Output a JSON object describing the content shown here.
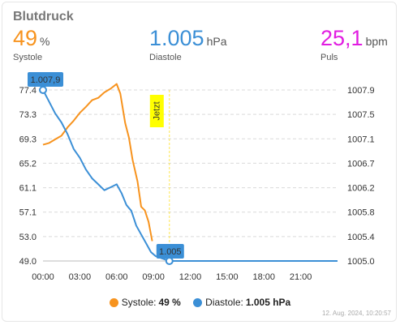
{
  "card": {
    "title": "Blutdruck",
    "timestamp": "12. Aug. 2024, 10:20:57"
  },
  "stats": {
    "systole": {
      "value": "49",
      "unit": "%",
      "label": "Systole"
    },
    "diastole": {
      "value": "1.005",
      "unit": "hPa",
      "label": "Diastole"
    },
    "puls": {
      "value": "25,1",
      "unit": "bpm",
      "label": "Puls"
    }
  },
  "legend": {
    "systole_label": "Systole:",
    "systole_value": "49 %",
    "diastole_label": "Diastole:",
    "diastole_value": "1.005 hPa"
  },
  "colors": {
    "systole": "#f7931e",
    "diastole": "#3b8fd6",
    "now_marker": "#ffff00"
  },
  "chart_data": {
    "type": "line",
    "x_ticks": [
      "00:00",
      "03:00",
      "06:00",
      "09:00",
      "12:00",
      "15:00",
      "18:00",
      "21:00"
    ],
    "x_range_hours": [
      0,
      24
    ],
    "y_left_ticks": [
      "77.4",
      "73.3",
      "69.3",
      "65.2",
      "61.1",
      "57.1",
      "53.0",
      "49.0"
    ],
    "y_left_range": [
      49.0,
      77.4
    ],
    "y_right_ticks": [
      "1007.9",
      "1007.5",
      "1007.1",
      "1006.7",
      "1006.2",
      "1005.8",
      "1005.4",
      "1005.0"
    ],
    "y_right_range": [
      1005.0,
      1007.9
    ],
    "grid": true,
    "now_label": "Jetzt",
    "now_hour": 10.3,
    "series": [
      {
        "name": "Systole",
        "axis": "left",
        "x": [
          0,
          0.5,
          1,
          1.5,
          2,
          2.5,
          3,
          3.5,
          4,
          4.5,
          5,
          5.5,
          6,
          6.3,
          6.7,
          7,
          7.3,
          7.7,
          8,
          8.3,
          8.6,
          8.9
        ],
        "y": [
          68.3,
          68.6,
          69.2,
          69.8,
          71.2,
          72.3,
          73.6,
          74.6,
          75.7,
          76.1,
          77.0,
          77.6,
          78.4,
          76.8,
          71.9,
          69.5,
          65.8,
          62.2,
          58.0,
          57.4,
          55.5,
          52.3
        ]
      },
      {
        "name": "Diastole",
        "axis": "right",
        "x": [
          0,
          0.5,
          1,
          1.5,
          2,
          2.5,
          3,
          3.5,
          4,
          4.5,
          5,
          5.5,
          6,
          6.4,
          6.8,
          7.2,
          7.6,
          8,
          8.4,
          8.8,
          9.2,
          10.3,
          24
        ],
        "y": [
          1007.9,
          1007.7,
          1007.5,
          1007.35,
          1007.15,
          1006.9,
          1006.75,
          1006.55,
          1006.4,
          1006.3,
          1006.2,
          1006.25,
          1006.3,
          1006.15,
          1005.95,
          1005.85,
          1005.6,
          1005.45,
          1005.3,
          1005.15,
          1005.08,
          1005.0,
          1005.0
        ]
      }
    ],
    "callouts": [
      {
        "series": "Diastole",
        "x": 0,
        "y": 1007.9,
        "text": "1.007,9"
      },
      {
        "series": "Diastole",
        "x": 10.3,
        "y": 1005.0,
        "text": "1.005"
      }
    ]
  }
}
